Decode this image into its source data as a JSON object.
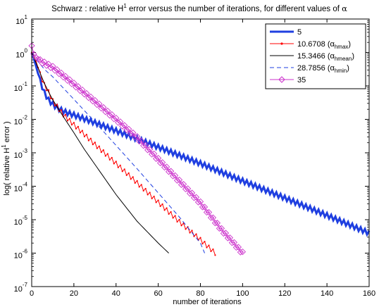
{
  "chart_data": {
    "type": "line",
    "title_main": "Schwarz : relative H",
    "title_sup": "1",
    "title_rest": " error versus the number of iterations, for different values of ",
    "title_alpha": "α",
    "xlabel": "number of iterations",
    "ylabel_main": "log( relative H",
    "ylabel_sup": "1",
    "ylabel_rest": " error )",
    "xlim": [
      0,
      160
    ],
    "ylim_exponent": [
      -7,
      1
    ],
    "y_scale": "log",
    "x_ticks": [
      "0",
      "20",
      "40",
      "60",
      "80",
      "100",
      "120",
      "140",
      "160"
    ],
    "x_tick_values": [
      0,
      20,
      40,
      60,
      80,
      100,
      120,
      140,
      160
    ],
    "y_ticks": [
      {
        "base": "10",
        "exp": "1"
      },
      {
        "base": "10",
        "exp": "0"
      },
      {
        "base": "10",
        "exp": "-1"
      },
      {
        "base": "10",
        "exp": "-2"
      },
      {
        "base": "10",
        "exp": "-3"
      },
      {
        "base": "10",
        "exp": "-4"
      },
      {
        "base": "10",
        "exp": "-5"
      },
      {
        "base": "10",
        "exp": "-6"
      },
      {
        "base": "10",
        "exp": "-7"
      }
    ],
    "legend_position": "top-right",
    "series": [
      {
        "name": "5",
        "color": "#1f3fe0",
        "style": "solid-thick",
        "oscillation": 0.07,
        "x": [
          0,
          1,
          2,
          3,
          4,
          5,
          6,
          8,
          10,
          12,
          15,
          20,
          30,
          40,
          60,
          80,
          100,
          120,
          140,
          160
        ],
        "log10y": [
          0.0,
          -0.18,
          -0.4,
          -0.63,
          -0.85,
          -1.03,
          -1.2,
          -1.42,
          -1.55,
          -1.65,
          -1.76,
          -1.87,
          -2.1,
          -2.34,
          -2.83,
          -3.32,
          -3.84,
          -4.35,
          -4.87,
          -5.4
        ]
      },
      {
        "name": "10.6708 (α",
        "sub": "hmax",
        "name_end": ")",
        "color": "#ff0000",
        "style": "solid-dots",
        "oscillation": 0.06,
        "x": [
          0,
          1,
          2,
          4,
          6,
          8,
          10,
          15,
          20,
          30,
          40,
          50,
          60,
          70,
          80,
          87
        ],
        "log10y": [
          0.0,
          -0.12,
          -0.25,
          -0.65,
          -0.97,
          -1.18,
          -1.45,
          -1.86,
          -2.16,
          -2.75,
          -3.32,
          -3.9,
          -4.48,
          -5.06,
          -5.6,
          -6.0
        ]
      },
      {
        "name": "15.3466 (α",
        "sub": "hmean",
        "name_end": ")",
        "color": "#000000",
        "style": "solid-thin",
        "oscillation": 0,
        "x": [
          0,
          2,
          4,
          6,
          8,
          10,
          15,
          20,
          25,
          30,
          40,
          50,
          60,
          65
        ],
        "log10y": [
          0.0,
          -0.3,
          -0.62,
          -0.92,
          -1.18,
          -1.42,
          -1.92,
          -2.4,
          -2.9,
          -3.35,
          -4.25,
          -5.05,
          -5.7,
          -6.0
        ]
      },
      {
        "name": "28.7856 (α",
        "sub": "hmin",
        "name_end": ")",
        "color": "#1f3fe0",
        "style": "dashed",
        "oscillation": 0,
        "x": [
          0,
          2,
          4,
          6,
          8,
          10,
          20,
          30,
          40,
          50,
          60,
          70,
          80,
          82
        ],
        "log10y": [
          -0.05,
          -0.2,
          -0.35,
          -0.5,
          -0.62,
          -0.73,
          -1.4,
          -2.08,
          -2.78,
          -3.48,
          -4.2,
          -4.92,
          -5.7,
          -6.0
        ]
      },
      {
        "name": "35",
        "color": "#cc33cc",
        "style": "diamonds",
        "oscillation": 0.04,
        "x": [
          0,
          1,
          2,
          4,
          6,
          10,
          20,
          30,
          40,
          50,
          60,
          70,
          80,
          90,
          100
        ],
        "log10y": [
          0.2,
          -0.05,
          -0.15,
          -0.25,
          -0.32,
          -0.45,
          -0.95,
          -1.47,
          -2.0,
          -2.55,
          -3.2,
          -3.85,
          -4.5,
          -5.3,
          -6.0
        ]
      }
    ]
  }
}
